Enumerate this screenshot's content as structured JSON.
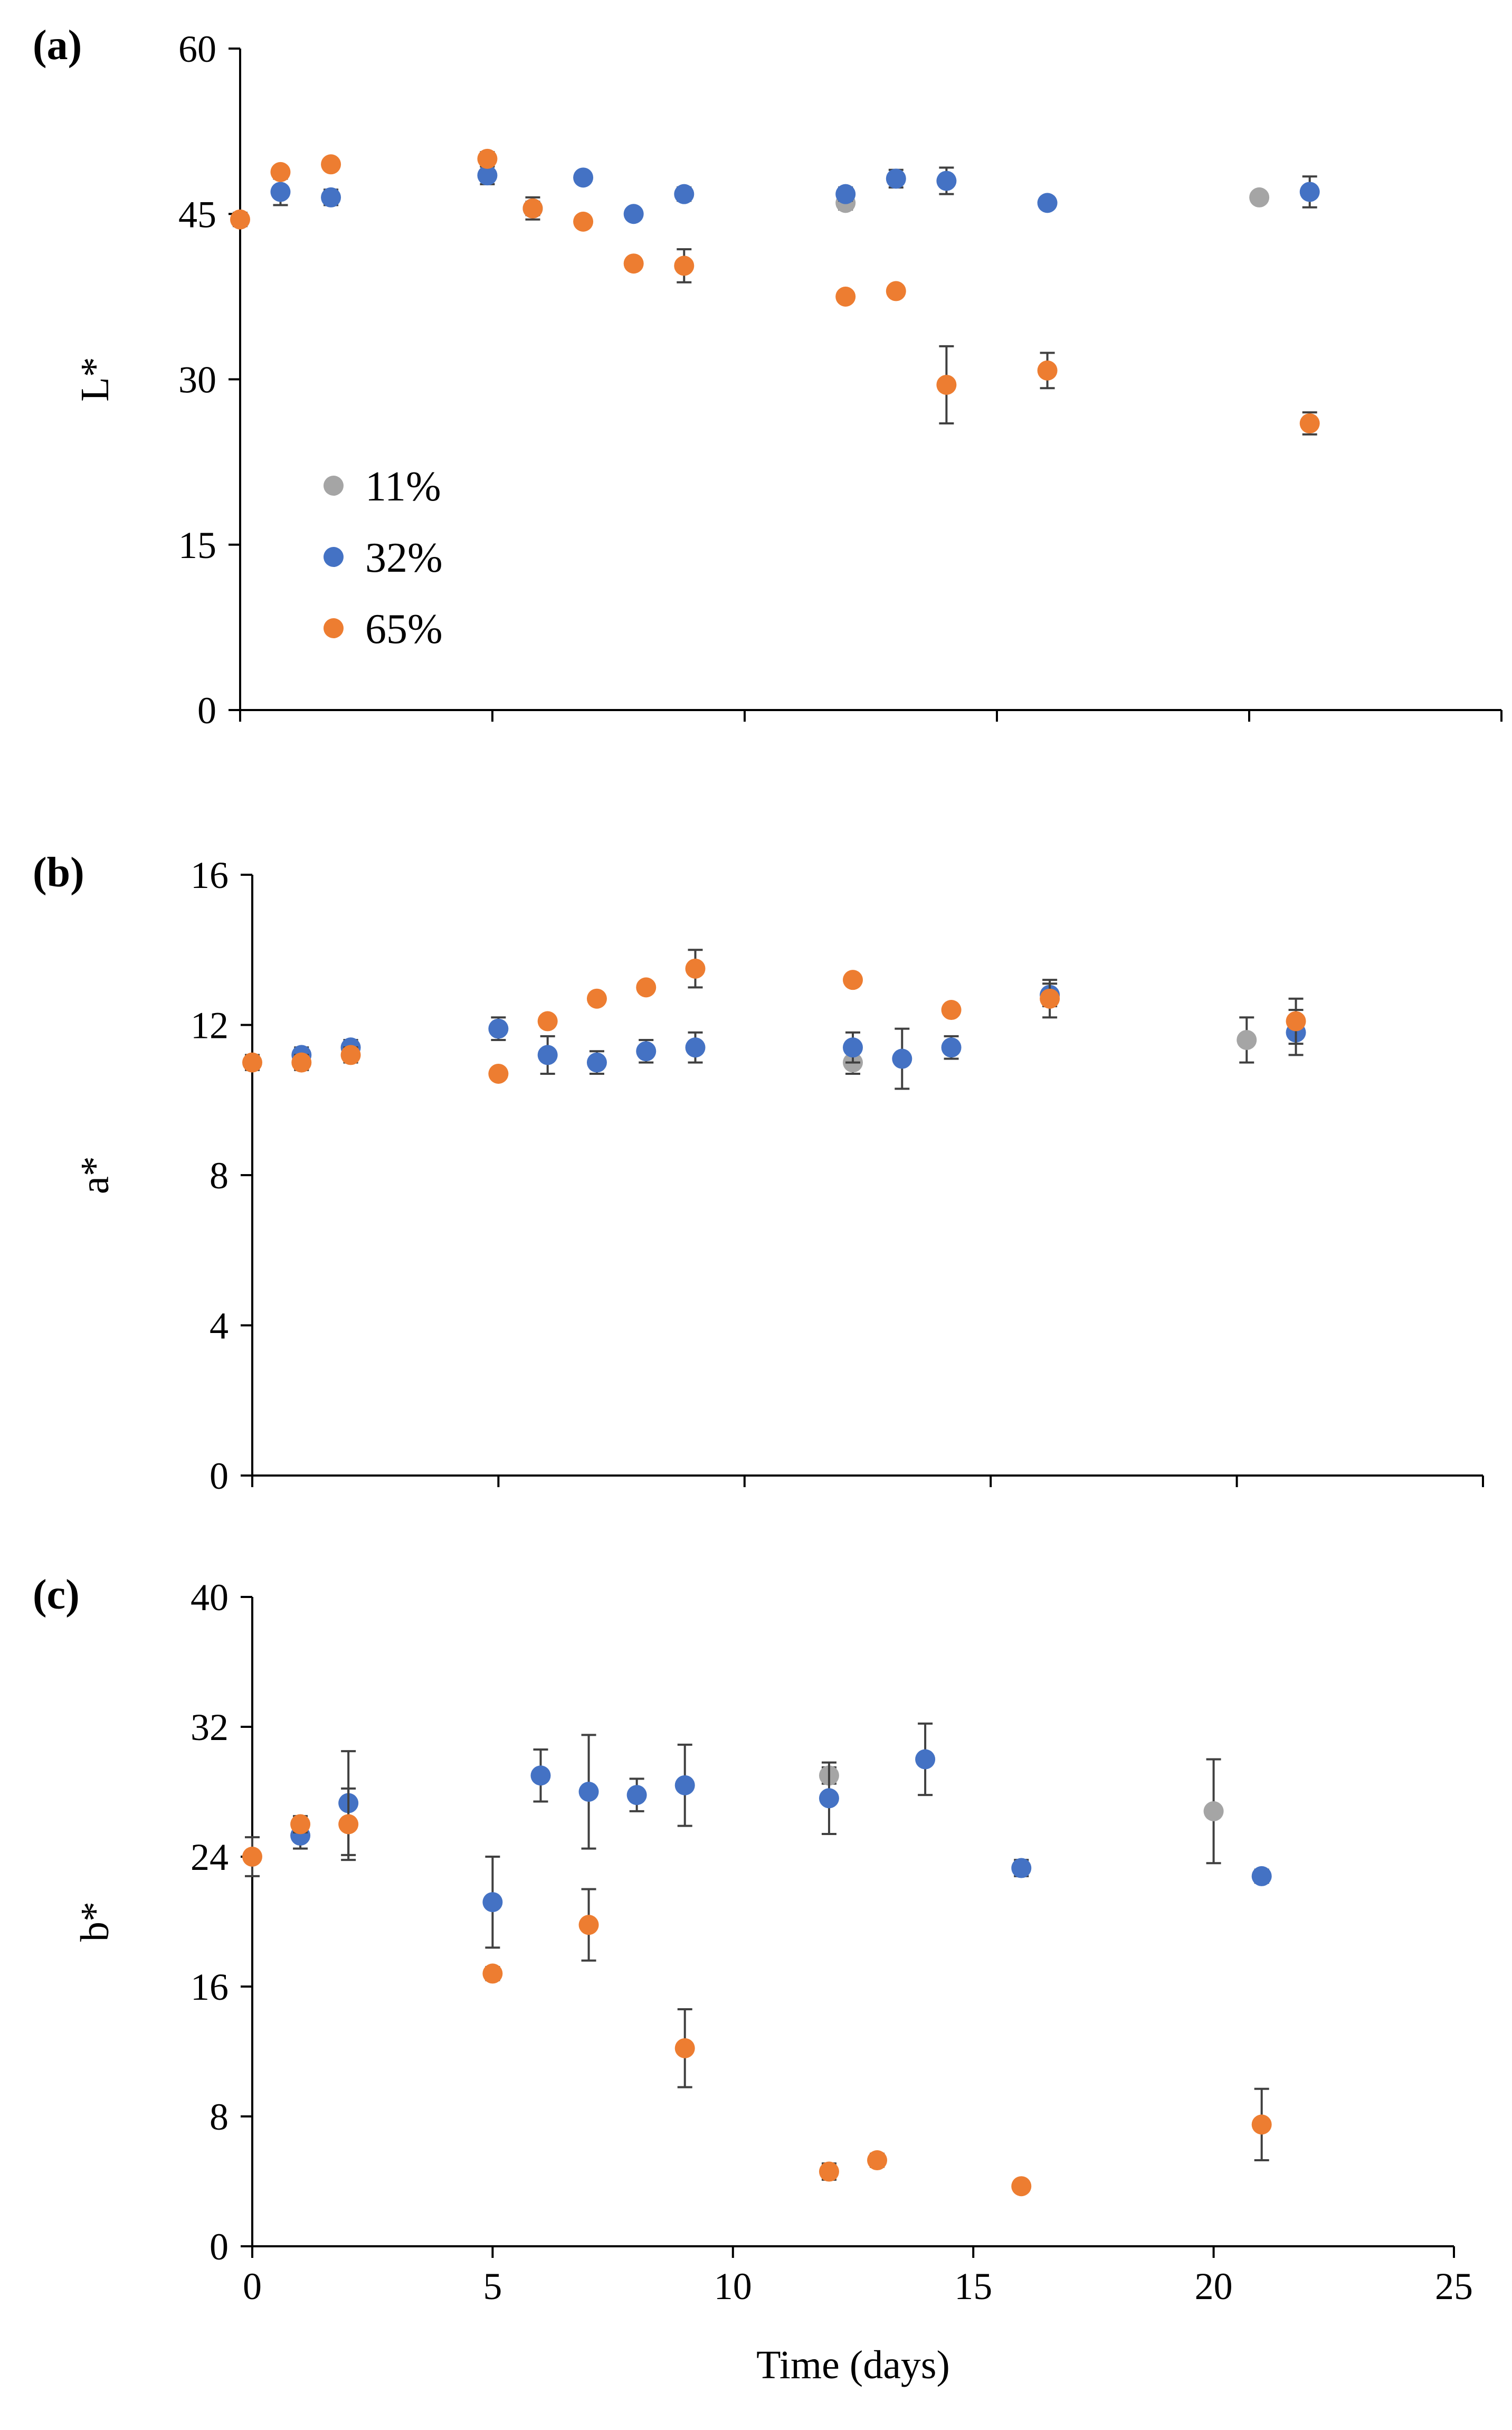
{
  "colors": {
    "s11": "#a5a5a5",
    "s32": "#4472c4",
    "s65": "#ed7d31",
    "axis": "#000000",
    "errorbar": "#404040"
  },
  "chart_data": [
    {
      "type": "scatter",
      "panel_label": "(a)",
      "ylabel": "L*",
      "xlabel": "",
      "xlim": [
        0,
        25
      ],
      "ylim": [
        0,
        60
      ],
      "yticks": [
        0,
        15,
        30,
        45,
        60
      ],
      "xticks": [
        0,
        5,
        10,
        15,
        20,
        25
      ],
      "show_x_tick_labels": false,
      "legend": {
        "location": "left-middle",
        "entries": [
          "11%",
          "32%",
          "65%"
        ]
      },
      "series": [
        {
          "name": "11%",
          "color_key": "s11",
          "points": [
            {
              "x": 12,
              "y": 46.0,
              "err": 0.6
            },
            {
              "x": 20.2,
              "y": 46.5,
              "err": 0.4
            }
          ]
        },
        {
          "name": "32%",
          "color_key": "s32",
          "points": [
            {
              "x": 0.8,
              "y": 47.0,
              "err": 1.2
            },
            {
              "x": 1.8,
              "y": 46.5,
              "err": 0.7
            },
            {
              "x": 4.9,
              "y": 48.5,
              "err": 0.8
            },
            {
              "x": 5.8,
              "y": 45.5,
              "err": 0.6
            },
            {
              "x": 6.8,
              "y": 48.3,
              "err": 0.4
            },
            {
              "x": 7.8,
              "y": 45.0,
              "err": 0.4
            },
            {
              "x": 8.8,
              "y": 46.8,
              "err": 0.6
            },
            {
              "x": 12,
              "y": 46.8,
              "err": 0.6
            },
            {
              "x": 13,
              "y": 48.2,
              "err": 0.8
            },
            {
              "x": 14,
              "y": 48.0,
              "err": 1.2
            },
            {
              "x": 16,
              "y": 46.0,
              "err": 0.5
            },
            {
              "x": 21.2,
              "y": 47.0,
              "err": 1.4
            }
          ]
        },
        {
          "name": "65%",
          "color_key": "s65",
          "points": [
            {
              "x": 0,
              "y": 44.5,
              "err": 0.6
            },
            {
              "x": 0.8,
              "y": 48.8,
              "err": 0.5
            },
            {
              "x": 1.8,
              "y": 49.5,
              "err": 0.5
            },
            {
              "x": 4.9,
              "y": 50.0,
              "err": 0.6
            },
            {
              "x": 5.8,
              "y": 45.5,
              "err": 1.0
            },
            {
              "x": 6.8,
              "y": 44.3,
              "err": 0.4
            },
            {
              "x": 7.8,
              "y": 40.5,
              "err": 0.5
            },
            {
              "x": 8.8,
              "y": 40.3,
              "err": 1.5
            },
            {
              "x": 12,
              "y": 37.5,
              "err": 0.5
            },
            {
              "x": 13,
              "y": 38.0,
              "err": 0.5
            },
            {
              "x": 14,
              "y": 29.5,
              "err": 3.5
            },
            {
              "x": 16,
              "y": 30.8,
              "err": 1.6
            },
            {
              "x": 21.2,
              "y": 26.0,
              "err": 1.0
            }
          ]
        }
      ]
    },
    {
      "type": "scatter",
      "panel_label": "(b)",
      "ylabel": "a*",
      "xlabel": "",
      "xlim": [
        0,
        25
      ],
      "ylim": [
        0,
        16
      ],
      "yticks": [
        0,
        4,
        8,
        12,
        16
      ],
      "xticks": [
        0,
        5,
        10,
        15,
        20,
        25
      ],
      "show_x_tick_labels": false,
      "series": [
        {
          "name": "11%",
          "color_key": "s11",
          "points": [
            {
              "x": 12.2,
              "y": 11.0,
              "err": 0.3
            },
            {
              "x": 20.2,
              "y": 11.6,
              "err": 0.6
            }
          ]
        },
        {
          "name": "32%",
          "color_key": "s32",
          "points": [
            {
              "x": 1.0,
              "y": 11.2,
              "err": 0.2
            },
            {
              "x": 2.0,
              "y": 11.4,
              "err": 0.2
            },
            {
              "x": 5.0,
              "y": 11.9,
              "err": 0.3
            },
            {
              "x": 6.0,
              "y": 11.2,
              "err": 0.5
            },
            {
              "x": 7.0,
              "y": 11.0,
              "err": 0.3
            },
            {
              "x": 8.0,
              "y": 11.3,
              "err": 0.3
            },
            {
              "x": 9.0,
              "y": 11.4,
              "err": 0.4
            },
            {
              "x": 12.2,
              "y": 11.4,
              "err": 0.4
            },
            {
              "x": 13.2,
              "y": 11.1,
              "err": 0.8
            },
            {
              "x": 14.2,
              "y": 11.4,
              "err": 0.3
            },
            {
              "x": 16.2,
              "y": 12.8,
              "err": 0.3
            },
            {
              "x": 21.2,
              "y": 11.8,
              "err": 0.6
            }
          ]
        },
        {
          "name": "65%",
          "color_key": "s65",
          "points": [
            {
              "x": 0,
              "y": 11.0,
              "err": 0.2
            },
            {
              "x": 1.0,
              "y": 11.0,
              "err": 0.2
            },
            {
              "x": 2.0,
              "y": 11.2,
              "err": 0.2
            },
            {
              "x": 5.0,
              "y": 10.7,
              "err": 0.1
            },
            {
              "x": 6.0,
              "y": 12.1,
              "err": 0.1
            },
            {
              "x": 7.0,
              "y": 12.7,
              "err": 0.1
            },
            {
              "x": 8.0,
              "y": 13.0,
              "err": 0.1
            },
            {
              "x": 9.0,
              "y": 13.5,
              "err": 0.5
            },
            {
              "x": 12.2,
              "y": 13.2,
              "err": 0.1
            },
            {
              "x": 14.2,
              "y": 12.4,
              "err": 0.1
            },
            {
              "x": 16.2,
              "y": 12.7,
              "err": 0.5
            },
            {
              "x": 21.2,
              "y": 12.1,
              "err": 0.6
            }
          ]
        }
      ]
    },
    {
      "type": "scatter",
      "panel_label": "(c)",
      "ylabel": "b*",
      "xlabel": "Time (days)",
      "xlim": [
        0,
        25
      ],
      "ylim": [
        0,
        40
      ],
      "yticks": [
        0,
        8,
        16,
        24,
        32,
        40
      ],
      "xticks": [
        0,
        5,
        10,
        15,
        20,
        25
      ],
      "show_x_tick_labels": true,
      "series": [
        {
          "name": "11%",
          "color_key": "s11",
          "points": [
            {
              "x": 12,
              "y": 29.0,
              "err": 0.5
            },
            {
              "x": 20,
              "y": 26.8,
              "err": 3.2
            }
          ]
        },
        {
          "name": "32%",
          "color_key": "s32",
          "points": [
            {
              "x": 1.0,
              "y": 25.3,
              "err": 0.8
            },
            {
              "x": 2.0,
              "y": 27.3,
              "err": 3.2
            },
            {
              "x": 5.0,
              "y": 21.2,
              "err": 2.8
            },
            {
              "x": 6.0,
              "y": 29.0,
              "err": 1.6
            },
            {
              "x": 7.0,
              "y": 28.0,
              "err": 3.5
            },
            {
              "x": 8.0,
              "y": 27.8,
              "err": 1.0
            },
            {
              "x": 9.0,
              "y": 28.4,
              "err": 2.5
            },
            {
              "x": 12,
              "y": 27.6,
              "err": 2.2
            },
            {
              "x": 14,
              "y": 30.0,
              "err": 2.2
            },
            {
              "x": 16,
              "y": 23.3,
              "err": 0.5
            },
            {
              "x": 21,
              "y": 22.8,
              "err": 0.4
            }
          ]
        },
        {
          "name": "65%",
          "color_key": "s65",
          "points": [
            {
              "x": 0,
              "y": 24.0,
              "err": 1.2
            },
            {
              "x": 1.0,
              "y": 26.0,
              "err": 0.5
            },
            {
              "x": 2.0,
              "y": 26.0,
              "err": 2.2
            },
            {
              "x": 5.0,
              "y": 16.8,
              "err": 0.4
            },
            {
              "x": 7.0,
              "y": 19.8,
              "err": 2.2
            },
            {
              "x": 9.0,
              "y": 12.2,
              "err": 2.4
            },
            {
              "x": 12,
              "y": 4.6,
              "err": 0.5
            },
            {
              "x": 13,
              "y": 5.3,
              "err": 0.4
            },
            {
              "x": 16,
              "y": 3.7,
              "err": 0.3
            },
            {
              "x": 21,
              "y": 7.5,
              "err": 2.2
            }
          ]
        }
      ]
    }
  ]
}
